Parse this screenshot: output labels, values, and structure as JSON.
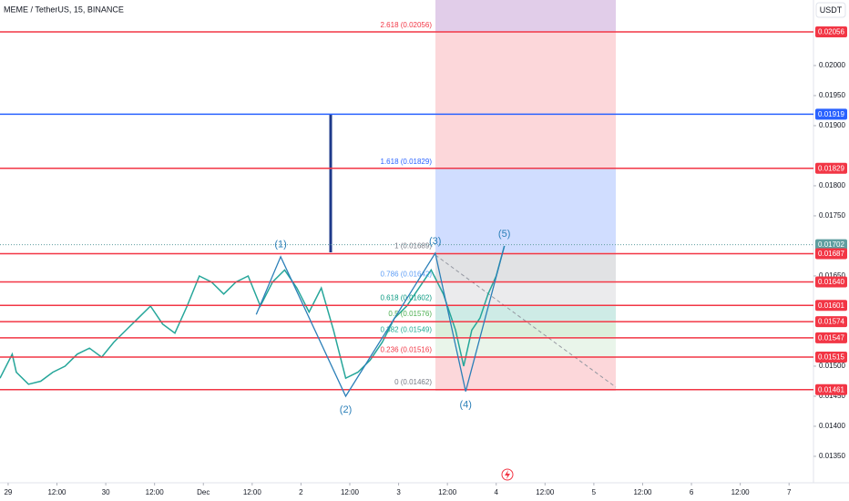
{
  "chart_data": {
    "type": "line",
    "title": "MEME / TetherUS, 15, BINANCE",
    "currency": "USDT",
    "color": "#26a69a",
    "x": [
      -2,
      1,
      2,
      5,
      8,
      11,
      14,
      17,
      20,
      23,
      26,
      29,
      32,
      35,
      38,
      41,
      44,
      47,
      50,
      53,
      56,
      59,
      62,
      65,
      68,
      71,
      74,
      77,
      80,
      83,
      86,
      89,
      92,
      95,
      98,
      101,
      104,
      107,
      110,
      112,
      114,
      116,
      118,
      120,
      122
    ],
    "values": [
      0.0148,
      0.0152,
      0.0149,
      0.0147,
      0.01475,
      0.0149,
      0.015,
      0.0152,
      0.0153,
      0.01515,
      0.0154,
      0.0156,
      0.0158,
      0.016,
      0.0157,
      0.01555,
      0.016,
      0.0165,
      0.0164,
      0.0162,
      0.0164,
      0.0165,
      0.016,
      0.0164,
      0.0166,
      0.0163,
      0.0159,
      0.0163,
      0.0156,
      0.0148,
      0.0149,
      0.0151,
      0.0154,
      0.0158,
      0.016,
      0.0163,
      0.0166,
      0.0162,
      0.0156,
      0.015,
      0.0156,
      0.0158,
      0.0162,
      0.0165,
      0.017
    ],
    "xlim": [
      -2,
      198
    ],
    "ylim": [
      0.01306,
      0.02109
    ],
    "xticks": [
      {
        "value": 0,
        "label": "29"
      },
      {
        "value": 12,
        "label": "12:00"
      },
      {
        "value": 24,
        "label": "30"
      },
      {
        "value": 36,
        "label": "12:00"
      },
      {
        "value": 48,
        "label": "Dec"
      },
      {
        "value": 60,
        "label": "12:00"
      },
      {
        "value": 72,
        "label": "2"
      },
      {
        "value": 84,
        "label": "12:00"
      },
      {
        "value": 96,
        "label": "3"
      },
      {
        "value": 108,
        "label": "12:00"
      },
      {
        "value": 120,
        "label": "4"
      },
      {
        "value": 132,
        "label": "12:00"
      },
      {
        "value": 144,
        "label": "5"
      },
      {
        "value": 156,
        "label": "12:00"
      },
      {
        "value": 168,
        "label": "6"
      },
      {
        "value": 180,
        "label": "12:00"
      },
      {
        "value": 192,
        "label": "7"
      }
    ],
    "yticks": [
      {
        "value": 0.02,
        "label": "0.02000"
      },
      {
        "value": 0.0195,
        "label": "0.01950"
      },
      {
        "value": 0.019,
        "label": "0.01900"
      },
      {
        "value": 0.018,
        "label": "0.01800"
      },
      {
        "value": 0.0175,
        "label": "0.01750"
      },
      {
        "value": 0.0165,
        "label": "0.01650"
      },
      {
        "value": 0.015,
        "label": "0.01500"
      },
      {
        "value": 0.0145,
        "label": "0.01450"
      },
      {
        "value": 0.014,
        "label": "0.01400"
      },
      {
        "value": 0.0135,
        "label": "0.01350"
      }
    ],
    "levels": [
      {
        "value": 0.02056,
        "label": "0.02056",
        "color": "#f23645"
      },
      {
        "value": 0.01919,
        "label": "0.01919",
        "color": "#2962ff"
      },
      {
        "value": 0.01829,
        "label": "0.01829",
        "color": "#f23645"
      },
      {
        "value": 0.01702,
        "label": "0.01702",
        "color": "#5f9ea0"
      },
      {
        "value": 0.01687,
        "label": "0.01687",
        "color": "#f23645"
      },
      {
        "value": 0.0164,
        "label": "0.01640",
        "color": "#f23645"
      },
      {
        "value": 0.01601,
        "label": "0.01601",
        "color": "#f23645"
      },
      {
        "value": 0.01574,
        "label": "0.01574",
        "color": "#f23645"
      },
      {
        "value": 0.01547,
        "label": "0.01547",
        "color": "#f23645"
      },
      {
        "value": 0.01515,
        "label": "0.01515",
        "color": "#f23645"
      },
      {
        "value": 0.01461,
        "label": "0.01461",
        "color": "#f23645"
      }
    ],
    "fib": [
      {
        "value": 0.02056,
        "label": "2.618 (0.02056)",
        "color": "#f23645",
        "zone": "rgba(155,89,182,0.3)"
      },
      {
        "value": 0.01829,
        "label": "1.618 (0.01829)",
        "color": "#2962ff",
        "zone": "rgba(242,54,69,0.2)"
      },
      {
        "value": 0.01689,
        "label": "1 (0.01689)",
        "color": "#787b86",
        "zone": "rgba(41,98,255,0.22)"
      },
      {
        "value": 0.01642,
        "label": "0.786 (0.01642)",
        "color": "#5b9cf6",
        "zone": "rgba(120,123,134,0.22)"
      },
      {
        "value": 0.01602,
        "label": "0.618 (0.01602)",
        "color": "#089981",
        "zone": "rgba(120,123,134,0.15)"
      },
      {
        "value": 0.01576,
        "label": "0.5 (0.01576)",
        "color": "#4caf50",
        "zone": "rgba(8,153,129,0.2)"
      },
      {
        "value": 0.01549,
        "label": "0.382 (0.01549)",
        "color": "#22ab94",
        "zone": "rgba(76,175,80,0.2)"
      },
      {
        "value": 0.01516,
        "label": "0.236 (0.01516)",
        "color": "#f23645",
        "zone": "rgba(76,175,80,0.12)"
      },
      {
        "value": 0.01462,
        "label": "0 (0.01462)",
        "color": "#787b86",
        "zone": "rgba(242,54,69,0.2)"
      }
    ],
    "wave_start": {
      "x": 61,
      "y": 0.01586
    },
    "waves": [
      {
        "label": "(1)",
        "x": 67,
        "y": 0.01682
      },
      {
        "label": "(2)",
        "x": 83,
        "y": 0.0145
      },
      {
        "label": "(3)",
        "x": 105,
        "y": 0.01688
      },
      {
        "label": "(4)",
        "x": 112.5,
        "y": 0.01458
      },
      {
        "label": "(5)",
        "x": 122,
        "y": 0.017
      }
    ]
  }
}
